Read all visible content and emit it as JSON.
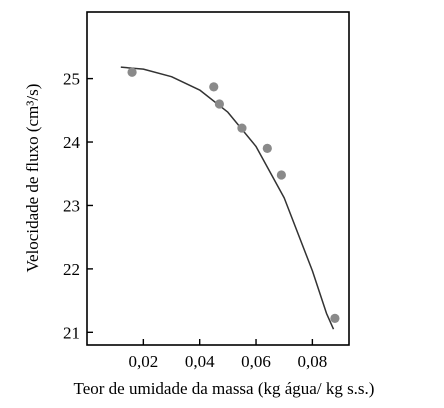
{
  "chart_data": {
    "type": "scatter",
    "title": "",
    "xlabel": "Teor de umidade da massa (kg água/ kg s.s.)",
    "ylabel": "Velocidade de fluxo (cm³/s)",
    "xlim": [
      0.0,
      0.093
    ],
    "ylim": [
      20.8,
      26.05
    ],
    "x_ticks": [
      0.02,
      0.04,
      0.06,
      0.08
    ],
    "x_tick_labels": [
      "0,02",
      "0,04",
      "0,06",
      "0,08"
    ],
    "y_ticks": [
      21,
      22,
      23,
      24,
      25
    ],
    "y_tick_labels": [
      "21",
      "22",
      "23",
      "24",
      "25"
    ],
    "grid": false,
    "legend": "none",
    "points": {
      "x": [
        0.016,
        0.045,
        0.047,
        0.055,
        0.064,
        0.069,
        0.088
      ],
      "y": [
        25.1,
        24.87,
        24.6,
        24.22,
        23.9,
        23.48,
        21.22
      ],
      "color": "#8a8a8a"
    },
    "fit_curve": {
      "x": [
        0.012,
        0.02,
        0.03,
        0.04,
        0.05,
        0.06,
        0.07,
        0.08,
        0.085,
        0.0875
      ],
      "y": [
        25.18,
        25.15,
        25.03,
        24.82,
        24.47,
        23.93,
        23.12,
        21.97,
        21.3,
        21.05
      ],
      "color": "#333333"
    }
  }
}
